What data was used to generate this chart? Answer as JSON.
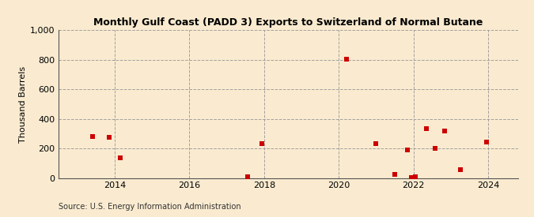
{
  "title": "Monthly Gulf Coast (PADD 3) Exports to Switzerland of Normal Butane",
  "ylabel": "Thousand Barrels",
  "source": "Source: U.S. Energy Information Administration",
  "background_color": "#faebd0",
  "point_color": "#cc0000",
  "ylim": [
    0,
    1000
  ],
  "xlim": [
    2012.5,
    2024.8
  ],
  "yticks": [
    0,
    200,
    400,
    600,
    800,
    1000
  ],
  "ytick_labels": [
    "0",
    "200",
    "400",
    "600",
    "800",
    "1,000"
  ],
  "xticks": [
    2014,
    2016,
    2018,
    2020,
    2022,
    2024
  ],
  "data_x": [
    2013.4,
    2013.85,
    2014.15,
    2017.55,
    2017.95,
    2020.2,
    2021.0,
    2021.5,
    2021.83,
    2021.95,
    2022.05,
    2022.35,
    2022.58,
    2022.83,
    2023.25,
    2023.95
  ],
  "data_y": [
    280,
    275,
    135,
    10,
    235,
    805,
    235,
    25,
    190,
    5,
    10,
    335,
    200,
    320,
    55,
    245
  ]
}
